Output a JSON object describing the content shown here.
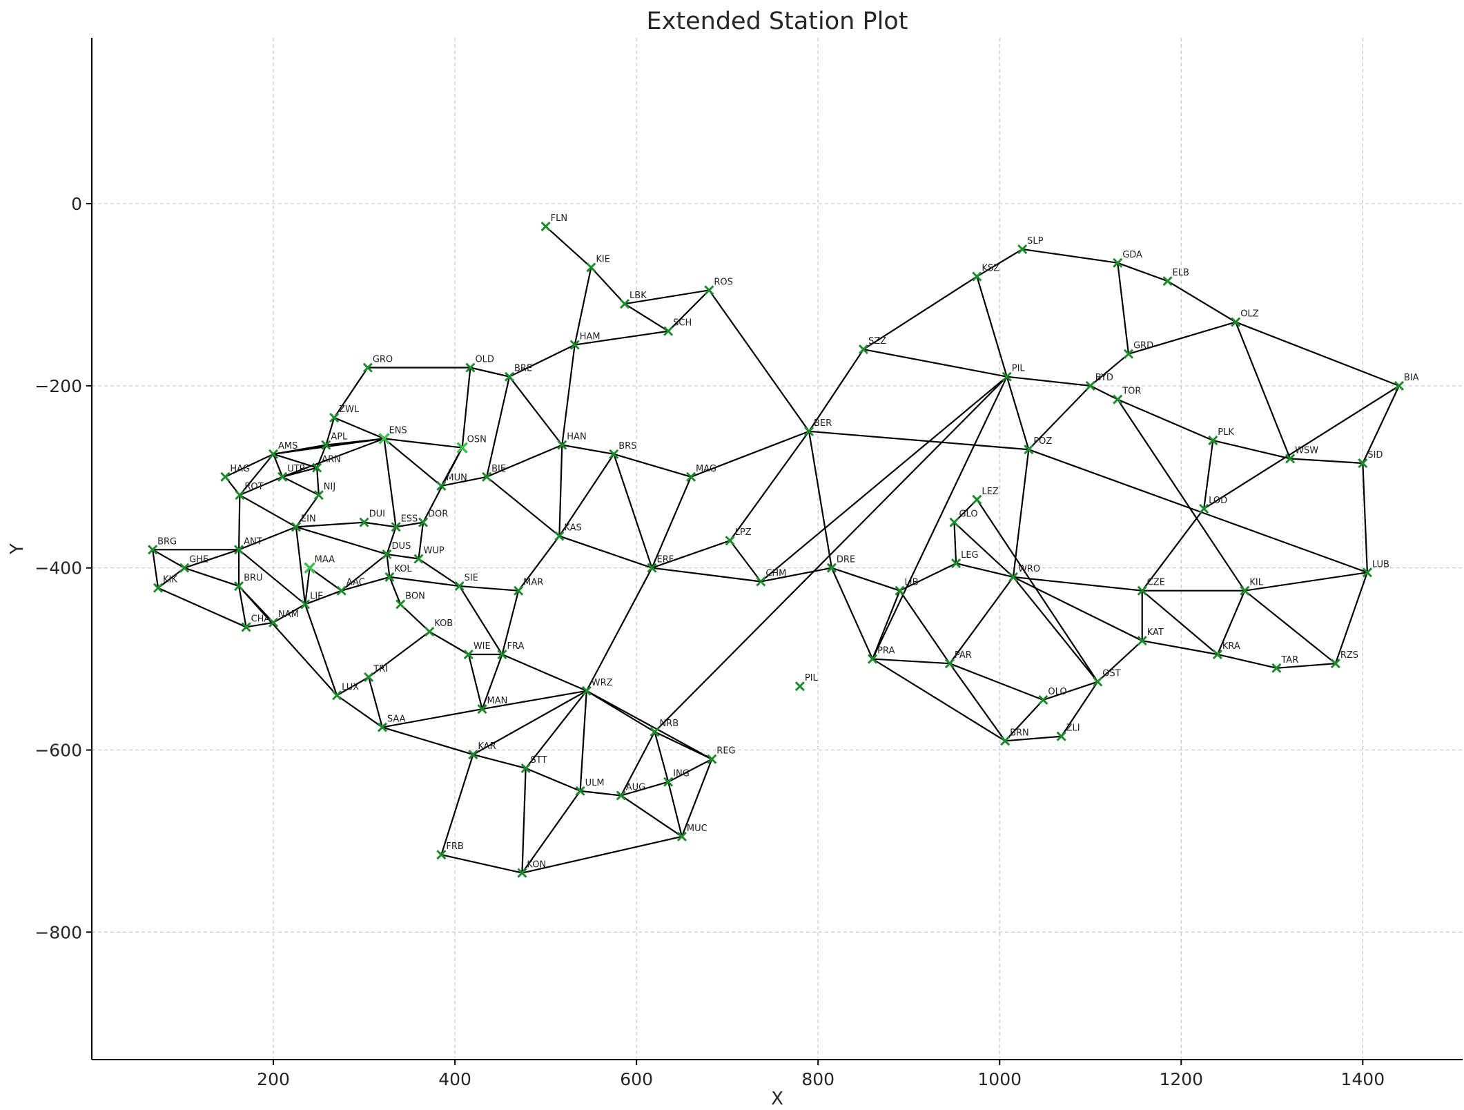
{
  "chart_data": {
    "type": "scatter",
    "title": "Extended Station Plot",
    "xlabel": "X",
    "ylabel": "Y",
    "xlim": [
      0,
      1510
    ],
    "ylim": [
      -940,
      182
    ],
    "xticks": [
      200,
      400,
      600,
      800,
      1000,
      1200,
      1400
    ],
    "yticks": [
      0,
      -200,
      -400,
      -600,
      -800
    ],
    "grid": true,
    "colors": {
      "marker": "#1e8a2e",
      "edge": "#000000"
    },
    "stations": [
      {
        "id": "FLN",
        "x": 500,
        "y": -25
      },
      {
        "id": "KIE",
        "x": 550,
        "y": -70
      },
      {
        "id": "LBK",
        "x": 587,
        "y": -110
      },
      {
        "id": "SCH",
        "x": 635,
        "y": -140
      },
      {
        "id": "ROS",
        "x": 680,
        "y": -95
      },
      {
        "id": "HAM",
        "x": 532,
        "y": -155
      },
      {
        "id": "BRE",
        "x": 460,
        "y": -190
      },
      {
        "id": "OLD",
        "x": 417,
        "y": -180
      },
      {
        "id": "GRO",
        "x": 304,
        "y": -180
      },
      {
        "id": "ZWL",
        "x": 267,
        "y": -235
      },
      {
        "id": "ENS",
        "x": 322,
        "y": -258
      },
      {
        "id": "OSN",
        "x": 408,
        "y": -268
      },
      {
        "id": "BIE",
        "x": 435,
        "y": -300
      },
      {
        "id": "HAN",
        "x": 518,
        "y": -265
      },
      {
        "id": "BRS",
        "x": 575,
        "y": -275
      },
      {
        "id": "MAG",
        "x": 660,
        "y": -300
      },
      {
        "id": "BER",
        "x": 790,
        "y": -250
      },
      {
        "id": "SZZ",
        "x": 850,
        "y": -160
      },
      {
        "id": "KSZ",
        "x": 975,
        "y": -80
      },
      {
        "id": "SLP",
        "x": 1025,
        "y": -50
      },
      {
        "id": "GDA",
        "x": 1130,
        "y": -65
      },
      {
        "id": "ELB",
        "x": 1185,
        "y": -85
      },
      {
        "id": "OLZ",
        "x": 1260,
        "y": -130
      },
      {
        "id": "BIA",
        "x": 1440,
        "y": -200
      },
      {
        "id": "GRD",
        "x": 1142,
        "y": -165
      },
      {
        "id": "PIL",
        "x": 1008,
        "y": -190
      },
      {
        "id": "BYD",
        "x": 1100,
        "y": -200
      },
      {
        "id": "TOR",
        "x": 1130,
        "y": -215
      },
      {
        "id": "POZ",
        "x": 1032,
        "y": -270
      },
      {
        "id": "PLK",
        "x": 1235,
        "y": -260
      },
      {
        "id": "WSW",
        "x": 1320,
        "y": -280
      },
      {
        "id": "SID",
        "x": 1400,
        "y": -285
      },
      {
        "id": "LOD",
        "x": 1225,
        "y": -335
      },
      {
        "id": "LUB",
        "x": 1405,
        "y": -405
      },
      {
        "id": "LEZ",
        "x": 975,
        "y": -325
      },
      {
        "id": "GLO",
        "x": 950,
        "y": -350
      },
      {
        "id": "LEG",
        "x": 952,
        "y": -395
      },
      {
        "id": "WRO",
        "x": 1015,
        "y": -410
      },
      {
        "id": "CZE",
        "x": 1157,
        "y": -425
      },
      {
        "id": "KIL",
        "x": 1270,
        "y": -425
      },
      {
        "id": "KAT",
        "x": 1157,
        "y": -480
      },
      {
        "id": "KRA",
        "x": 1240,
        "y": -495
      },
      {
        "id": "TAR",
        "x": 1305,
        "y": -510
      },
      {
        "id": "RZS",
        "x": 1370,
        "y": -505
      },
      {
        "id": "OST",
        "x": 1108,
        "y": -525
      },
      {
        "id": "OLO",
        "x": 1048,
        "y": -545
      },
      {
        "id": "ZLI",
        "x": 1068,
        "y": -585
      },
      {
        "id": "BRN",
        "x": 1006,
        "y": -590
      },
      {
        "id": "PAR",
        "x": 945,
        "y": -505
      },
      {
        "id": "LIB",
        "x": 890,
        "y": -425
      },
      {
        "id": "PRA",
        "x": 860,
        "y": -500
      },
      {
        "id": "DRE",
        "x": 815,
        "y": -400
      },
      {
        "id": "LPZ",
        "x": 703,
        "y": -370
      },
      {
        "id": "CHM",
        "x": 737,
        "y": -415
      },
      {
        "id": "ERF",
        "x": 617,
        "y": -400
      },
      {
        "id": "PIL",
        "x": 780,
        "y": -530
      },
      {
        "id": "NRB",
        "x": 620,
        "y": -580
      },
      {
        "id": "REG",
        "x": 683,
        "y": -610
      },
      {
        "id": "ING",
        "x": 635,
        "y": -635
      },
      {
        "id": "MUC",
        "x": 650,
        "y": -695
      },
      {
        "id": "AUG",
        "x": 583,
        "y": -650
      },
      {
        "id": "ULM",
        "x": 538,
        "y": -645
      },
      {
        "id": "STT",
        "x": 478,
        "y": -620
      },
      {
        "id": "KAR",
        "x": 420,
        "y": -605
      },
      {
        "id": "FRB",
        "x": 385,
        "y": -715
      },
      {
        "id": "KON",
        "x": 474,
        "y": -735
      },
      {
        "id": "WRZ",
        "x": 545,
        "y": -535
      },
      {
        "id": "FRA",
        "x": 452,
        "y": -495
      },
      {
        "id": "WIE",
        "x": 415,
        "y": -495
      },
      {
        "id": "MAN",
        "x": 430,
        "y": -555
      },
      {
        "id": "SAA",
        "x": 320,
        "y": -575
      },
      {
        "id": "TRI",
        "x": 305,
        "y": -520
      },
      {
        "id": "KOB",
        "x": 372,
        "y": -470
      },
      {
        "id": "MAR",
        "x": 470,
        "y": -425
      },
      {
        "id": "SIE",
        "x": 405,
        "y": -420
      },
      {
        "id": "KAS",
        "x": 515,
        "y": -365
      },
      {
        "id": "MUN",
        "x": 385,
        "y": -310
      },
      {
        "id": "DOR",
        "x": 365,
        "y": -350
      },
      {
        "id": "ESS",
        "x": 335,
        "y": -355
      },
      {
        "id": "DUI",
        "x": 300,
        "y": -350
      },
      {
        "id": "DUS",
        "x": 325,
        "y": -385
      },
      {
        "id": "WUP",
        "x": 360,
        "y": -390
      },
      {
        "id": "KOL",
        "x": 328,
        "y": -410
      },
      {
        "id": "BON",
        "x": 340,
        "y": -440
      },
      {
        "id": "AAC",
        "x": 275,
        "y": -425
      },
      {
        "id": "MAA",
        "x": 240,
        "y": -400
      },
      {
        "id": "LIE",
        "x": 235,
        "y": -440
      },
      {
        "id": "NAM",
        "x": 200,
        "y": -460
      },
      {
        "id": "CHA",
        "x": 170,
        "y": -465
      },
      {
        "id": "LUX",
        "x": 270,
        "y": -540
      },
      {
        "id": "BRU",
        "x": 162,
        "y": -420
      },
      {
        "id": "ANT",
        "x": 162,
        "y": -380
      },
      {
        "id": "GHE",
        "x": 102,
        "y": -400
      },
      {
        "id": "BRG",
        "x": 67,
        "y": -380
      },
      {
        "id": "KIK",
        "x": 73,
        "y": -422
      },
      {
        "id": "EIN",
        "x": 225,
        "y": -355
      },
      {
        "id": "NIJ",
        "x": 250,
        "y": -320
      },
      {
        "id": "UTR",
        "x": 210,
        "y": -300
      },
      {
        "id": "ROT",
        "x": 163,
        "y": -320
      },
      {
        "id": "HAG",
        "x": 147,
        "y": -300
      },
      {
        "id": "AMS",
        "x": 200,
        "y": -275
      },
      {
        "id": "APL",
        "x": 258,
        "y": -265
      },
      {
        "id": "ARN",
        "x": 248,
        "y": -290
      }
    ],
    "edges": [
      [
        "FLN",
        "KIE"
      ],
      [
        "KIE",
        "LBK"
      ],
      [
        "KIE",
        "HAM"
      ],
      [
        "LBK",
        "SCH"
      ],
      [
        "LBK",
        "ROS"
      ],
      [
        "ROS",
        "SCH"
      ],
      [
        "SCH",
        "HAM"
      ],
      [
        "ROS",
        "BER"
      ],
      [
        "HAM",
        "BRE"
      ],
      [
        "HAM",
        "HAN"
      ],
      [
        "BRE",
        "OLD"
      ],
      [
        "BRE",
        "HAN"
      ],
      [
        "BRE",
        "BIE"
      ],
      [
        "OLD",
        "GRO"
      ],
      [
        "OLD",
        "OSN"
      ],
      [
        "GRO",
        "ZWL"
      ],
      [
        "ZWL",
        "APL"
      ],
      [
        "ZWL",
        "ENS"
      ],
      [
        "ENS",
        "OSN"
      ],
      [
        "ENS",
        "APL"
      ],
      [
        "ENS",
        "AMS"
      ],
      [
        "ENS",
        "MUN"
      ],
      [
        "ENS",
        "ESS"
      ],
      [
        "OSN",
        "MUN"
      ],
      [
        "OSN",
        "DOR"
      ],
      [
        "MUN",
        "BIE"
      ],
      [
        "BIE",
        "HAN"
      ],
      [
        "BIE",
        "KAS"
      ],
      [
        "HAN",
        "BRS"
      ],
      [
        "HAN",
        "KAS"
      ],
      [
        "BRS",
        "MAG"
      ],
      [
        "BRS",
        "KAS"
      ],
      [
        "BRS",
        "ERF"
      ],
      [
        "MAG",
        "BER"
      ],
      [
        "MAG",
        "ERF"
      ],
      [
        "BER",
        "SZZ"
      ],
      [
        "BER",
        "POZ"
      ],
      [
        "BER",
        "LPZ"
      ],
      [
        "BER",
        "DRE"
      ],
      [
        "SZZ",
        "KSZ"
      ],
      [
        "SZZ",
        "PIL"
      ],
      [
        "KSZ",
        "SLP"
      ],
      [
        "KSZ",
        "POZ"
      ],
      [
        "SLP",
        "GDA"
      ],
      [
        "GDA",
        "ELB"
      ],
      [
        "GDA",
        "GRD"
      ],
      [
        "ELB",
        "OLZ"
      ],
      [
        "OLZ",
        "GRD"
      ],
      [
        "OLZ",
        "WSW"
      ],
      [
        "OLZ",
        "BIA"
      ],
      [
        "BIA",
        "LOD"
      ],
      [
        "BIA",
        "SID"
      ],
      [
        "GRD",
        "BYD"
      ],
      [
        "PIL",
        "BYD"
      ],
      [
        "BYD",
        "TOR"
      ],
      [
        "BYD",
        "POZ"
      ],
      [
        "TOR",
        "PLK"
      ],
      [
        "TOR",
        "KIL"
      ],
      [
        "PLK",
        "WSW"
      ],
      [
        "WSW",
        "SID"
      ],
      [
        "SID",
        "LUB"
      ],
      [
        "POZ",
        "LUB"
      ],
      [
        "POZ",
        "WRO"
      ],
      [
        "LOD",
        "CZE"
      ],
      [
        "LOD",
        "PLK"
      ],
      [
        "LUB",
        "KIL"
      ],
      [
        "LUB",
        "RZS"
      ],
      [
        "LEZ",
        "GLO"
      ],
      [
        "LEZ",
        "OST"
      ],
      [
        "GLO",
        "LEG"
      ],
      [
        "GLO",
        "WRO"
      ],
      [
        "LEG",
        "LIB"
      ],
      [
        "LEG",
        "WRO"
      ],
      [
        "WRO",
        "CZE"
      ],
      [
        "WRO",
        "KAT"
      ],
      [
        "WRO",
        "OST"
      ],
      [
        "WRO",
        "PAR"
      ],
      [
        "CZE",
        "KIL"
      ],
      [
        "CZE",
        "KAT"
      ],
      [
        "CZE",
        "KRA"
      ],
      [
        "KIL",
        "KRA"
      ],
      [
        "KIL",
        "RZS"
      ],
      [
        "KAT",
        "KRA"
      ],
      [
        "KAT",
        "OST"
      ],
      [
        "KRA",
        "TAR"
      ],
      [
        "TAR",
        "RZS"
      ],
      [
        "OST",
        "OLO"
      ],
      [
        "OST",
        "ZLI"
      ],
      [
        "OLO",
        "BRN"
      ],
      [
        "OLO",
        "PAR"
      ],
      [
        "ZLI",
        "BRN"
      ],
      [
        "BRN",
        "PAR"
      ],
      [
        "BRN",
        "PRA"
      ],
      [
        "PAR",
        "LIB"
      ],
      [
        "PAR",
        "PRA"
      ],
      [
        "LIB",
        "DRE"
      ],
      [
        "LIB",
        "PRA"
      ],
      [
        "DRE",
        "CHM"
      ],
      [
        "DRE",
        "PRA"
      ],
      [
        "LPZ",
        "CHM"
      ],
      [
        "LPZ",
        "ERF"
      ],
      [
        "CHM",
        "ERF"
      ],
      [
        "CHM",
        "PIL"
      ],
      [
        "PRA",
        "PIL"
      ],
      [
        "PIL",
        "NRB"
      ],
      [
        "ERF",
        "KAS"
      ],
      [
        "ERF",
        "WRZ"
      ],
      [
        "NRB",
        "REG"
      ],
      [
        "NRB",
        "ING"
      ],
      [
        "NRB",
        "WRZ"
      ],
      [
        "NRB",
        "AUG"
      ],
      [
        "REG",
        "ING"
      ],
      [
        "REG",
        "MUC"
      ],
      [
        "REG",
        "WRZ"
      ],
      [
        "ING",
        "MUC"
      ],
      [
        "ING",
        "AUG"
      ],
      [
        "MUC",
        "AUG"
      ],
      [
        "MUC",
        "KON"
      ],
      [
        "AUG",
        "ULM"
      ],
      [
        "ULM",
        "WRZ"
      ],
      [
        "ULM",
        "STT"
      ],
      [
        "ULM",
        "KON"
      ],
      [
        "STT",
        "KAR"
      ],
      [
        "STT",
        "KON"
      ],
      [
        "STT",
        "WRZ"
      ],
      [
        "KAR",
        "SAA"
      ],
      [
        "KAR",
        "FRB"
      ],
      [
        "KAR",
        "WRZ"
      ],
      [
        "FRB",
        "KON"
      ],
      [
        "WRZ",
        "FRA"
      ],
      [
        "WRZ",
        "MAN"
      ],
      [
        "FRA",
        "WIE"
      ],
      [
        "FRA",
        "MAR"
      ],
      [
        "FRA",
        "MAN"
      ],
      [
        "FRA",
        "SIE"
      ],
      [
        "WIE",
        "KOB"
      ],
      [
        "WIE",
        "MAN"
      ],
      [
        "MAN",
        "SAA"
      ],
      [
        "SAA",
        "TRI"
      ],
      [
        "SAA",
        "LUX"
      ],
      [
        "TRI",
        "KOB"
      ],
      [
        "TRI",
        "LUX"
      ],
      [
        "KOB",
        "BON"
      ],
      [
        "MAR",
        "SIE"
      ],
      [
        "MAR",
        "KAS"
      ],
      [
        "SIE",
        "KOL"
      ],
      [
        "SIE",
        "WUP"
      ],
      [
        "DOR",
        "ESS"
      ],
      [
        "DOR",
        "WUP"
      ],
      [
        "ESS",
        "DUI"
      ],
      [
        "ESS",
        "DUS"
      ],
      [
        "DUS",
        "KOL"
      ],
      [
        "DUS",
        "WUP"
      ],
      [
        "DUS",
        "EIN"
      ],
      [
        "DUS",
        "AAC"
      ],
      [
        "KOL",
        "BON"
      ],
      [
        "KOL",
        "AAC"
      ],
      [
        "AAC",
        "LIE"
      ],
      [
        "AAC",
        "MAA"
      ],
      [
        "MAA",
        "LIE"
      ],
      [
        "LIE",
        "ANT"
      ],
      [
        "LIE",
        "NAM"
      ],
      [
        "LIE",
        "LUX"
      ],
      [
        "LIE",
        "EIN"
      ],
      [
        "NAM",
        "CHA"
      ],
      [
        "NAM",
        "BRU"
      ],
      [
        "CHA",
        "BRU"
      ],
      [
        "CHA",
        "KIK"
      ],
      [
        "LUX",
        "BRU"
      ],
      [
        "BRU",
        "ANT"
      ],
      [
        "BRU",
        "GHE"
      ],
      [
        "ANT",
        "GHE"
      ],
      [
        "ANT",
        "BRG"
      ],
      [
        "ANT",
        "ROT"
      ],
      [
        "ANT",
        "EIN"
      ],
      [
        "GHE",
        "KIK"
      ],
      [
        "BRG",
        "KIK"
      ],
      [
        "BRG",
        "GHE"
      ],
      [
        "EIN",
        "NIJ"
      ],
      [
        "EIN",
        "DUI"
      ],
      [
        "EIN",
        "ROT"
      ],
      [
        "NIJ",
        "UTR"
      ],
      [
        "NIJ",
        "ARN"
      ],
      [
        "UTR",
        "ROT"
      ],
      [
        "UTR",
        "AMS"
      ],
      [
        "UTR",
        "ENS"
      ],
      [
        "ROT",
        "HAG"
      ],
      [
        "HAG",
        "AMS"
      ],
      [
        "AMS",
        "APL"
      ],
      [
        "AMS",
        "ARN"
      ],
      [
        "APL",
        "ARN"
      ],
      [
        "ARN",
        "UTR"
      ],
      [
        "ROT",
        "AMS"
      ]
    ]
  }
}
